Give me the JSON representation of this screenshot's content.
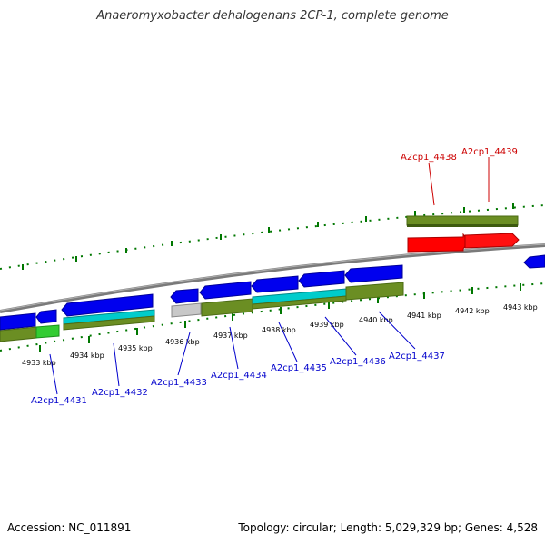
{
  "title": "Anaeromyxobacter dehalogenans 2CP-1, complete genome",
  "footer": {
    "accession": "Accession: NC_011891",
    "topology": "Topology: circular; Length: 5,029,329 bp; Genes: 4,528"
  },
  "colors": {
    "forward_cds": "#ff0000",
    "reverse_cds": "#0000ee",
    "label_forward": "#cc0000",
    "label_reverse": "#0000cc",
    "backbone": "#888888",
    "ticks": "#007700"
  },
  "ticks": [
    "4933 kbp",
    "4934 kbp",
    "4935 kbp",
    "4936 kbp",
    "4937 kbp",
    "4938 kbp",
    "4939 kbp",
    "4940 kbp",
    "4941 kbp",
    "4942 kbp",
    "4943 kbp"
  ],
  "gene_labels": [
    {
      "text": "A2cp1_4431",
      "strand": "reverse"
    },
    {
      "text": "A2cp1_4432",
      "strand": "reverse"
    },
    {
      "text": "A2cp1_4433",
      "strand": "reverse"
    },
    {
      "text": "A2cp1_4434",
      "strand": "reverse"
    },
    {
      "text": "A2cp1_4435",
      "strand": "reverse"
    },
    {
      "text": "A2cp1_4436",
      "strand": "reverse"
    },
    {
      "text": "A2cp1_4437",
      "strand": "reverse"
    },
    {
      "text": "A2cp1_4438",
      "strand": "forward"
    },
    {
      "text": "A2cp1_4439",
      "strand": "forward"
    }
  ]
}
